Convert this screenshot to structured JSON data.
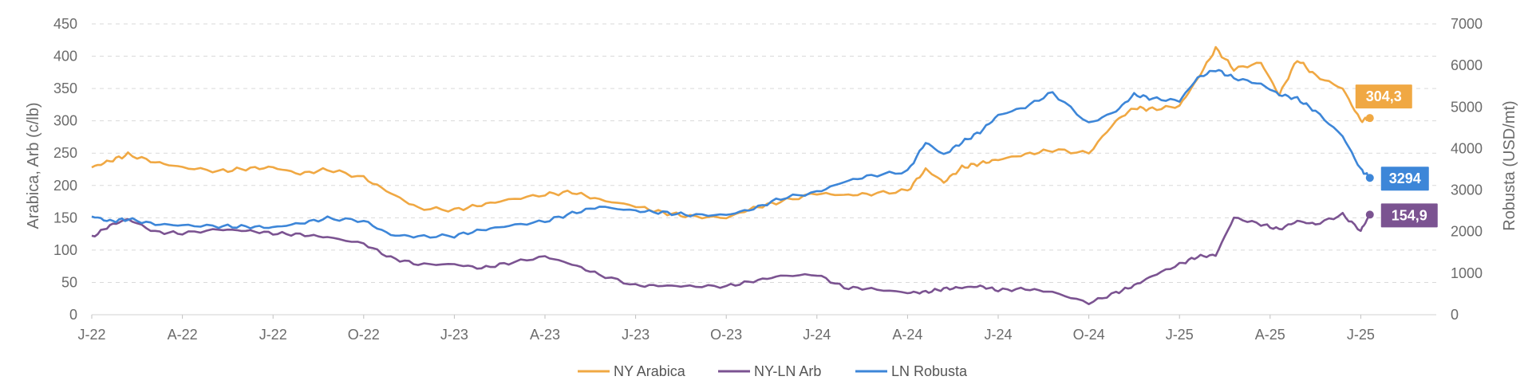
{
  "chart_data": {
    "type": "line",
    "title": "",
    "x_ticks": [
      "J-22",
      "A-22",
      "J-22",
      "O-22",
      "J-23",
      "A-23",
      "J-23",
      "O-23",
      "J-24",
      "A-24",
      "J-24",
      "O-24",
      "J-25",
      "A-25",
      "J-25"
    ],
    "y_left": {
      "label": "Arabica, Arb (c/lb)",
      "range": [
        0,
        450
      ],
      "ticks": [
        "0",
        "50",
        "100",
        "150",
        "200",
        "250",
        "300",
        "350",
        "400",
        "450"
      ]
    },
    "y_right": {
      "label": "Robusta (USD/mt)",
      "range": [
        0,
        7000
      ],
      "ticks": [
        "0",
        "1000",
        "2000",
        "3000",
        "4000",
        "5000",
        "6000",
        "7000"
      ]
    },
    "grid": "horizontal dashed",
    "legend_position": "bottom-center",
    "series": [
      {
        "name": "NY Arabica",
        "axis": "left",
        "color": "#f0a843",
        "last_label": "304,3",
        "x": [
          0,
          0.2,
          0.4,
          0.7,
          1.0,
          1.4,
          1.7,
          2.0,
          2.3,
          2.6,
          3.0,
          3.3,
          3.6,
          4.0,
          4.3,
          4.6,
          5.0,
          5.3,
          5.6,
          6.0,
          6.3,
          6.6,
          7.0,
          7.3,
          7.6,
          8.0,
          8.3,
          8.6,
          9.0,
          9.2,
          9.4,
          9.6,
          9.8,
          10.0,
          10.3,
          10.6,
          11.0,
          11.3,
          11.5,
          11.7,
          12.0,
          12.2,
          12.4,
          12.6,
          12.9,
          13.1,
          13.3,
          13.5,
          13.8,
          14.0,
          14.1
        ],
        "y": [
          228,
          238,
          248,
          236,
          228,
          222,
          226,
          228,
          218,
          225,
          212,
          188,
          165,
          162,
          170,
          178,
          186,
          190,
          178,
          168,
          158,
          152,
          150,
          165,
          175,
          188,
          185,
          187,
          192,
          225,
          205,
          228,
          234,
          240,
          248,
          255,
          250,
          300,
          320,
          318,
          323,
          365,
          412,
          380,
          390,
          340,
          395,
          370,
          350,
          300,
          304.3
        ]
      },
      {
        "name": "NY-LN Arb",
        "axis": "left",
        "color": "#7b5391",
        "last_label": "154,9",
        "x": [
          0,
          0.2,
          0.4,
          0.7,
          1.0,
          1.4,
          1.7,
          2.0,
          2.3,
          2.6,
          3.0,
          3.3,
          3.6,
          4.0,
          4.3,
          4.6,
          5.0,
          5.3,
          5.6,
          6.0,
          6.3,
          6.6,
          7.0,
          7.3,
          7.6,
          8.0,
          8.3,
          8.6,
          9.0,
          9.2,
          9.4,
          9.6,
          9.8,
          10.0,
          10.3,
          10.6,
          11.0,
          11.3,
          11.5,
          11.7,
          12.0,
          12.2,
          12.4,
          12.6,
          12.9,
          13.1,
          13.3,
          13.5,
          13.8,
          14.0,
          14.1
        ],
        "y": [
          120,
          138,
          148,
          128,
          126,
          132,
          130,
          126,
          124,
          120,
          110,
          88,
          78,
          78,
          72,
          80,
          90,
          78,
          62,
          45,
          45,
          44,
          44,
          52,
          60,
          62,
          42,
          40,
          34,
          35,
          40,
          42,
          44,
          38,
          40,
          35,
          18,
          34,
          45,
          60,
          78,
          90,
          92,
          150,
          140,
          132,
          145,
          140,
          155,
          130,
          154.9
        ]
      },
      {
        "name": "LN Robusta",
        "axis": "right",
        "color": "#3d86d8",
        "last_label": "3294",
        "x": [
          0,
          0.2,
          0.4,
          0.7,
          1.0,
          1.4,
          1.7,
          2.0,
          2.3,
          2.6,
          3.0,
          3.3,
          3.6,
          4.0,
          4.3,
          4.6,
          5.0,
          5.3,
          5.6,
          6.0,
          6.3,
          6.6,
          7.0,
          7.3,
          7.6,
          8.0,
          8.3,
          8.6,
          9.0,
          9.2,
          9.4,
          9.6,
          9.8,
          10.0,
          10.3,
          10.6,
          11.0,
          11.3,
          11.5,
          11.7,
          12.0,
          12.2,
          12.4,
          12.6,
          12.9,
          13.1,
          13.3,
          13.5,
          13.8,
          14.0,
          14.1
        ],
        "y": [
          2370,
          2250,
          2300,
          2180,
          2150,
          2130,
          2120,
          2100,
          2200,
          2320,
          2260,
          1920,
          1880,
          1900,
          2040,
          2140,
          2250,
          2440,
          2600,
          2500,
          2460,
          2400,
          2400,
          2550,
          2800,
          2950,
          3200,
          3350,
          3450,
          4150,
          3850,
          4150,
          4400,
          4800,
          5000,
          5350,
          4600,
          4900,
          5300,
          5200,
          5150,
          5700,
          5900,
          5700,
          5550,
          5300,
          5200,
          4900,
          4300,
          3500,
          3294
        ]
      }
    ]
  }
}
